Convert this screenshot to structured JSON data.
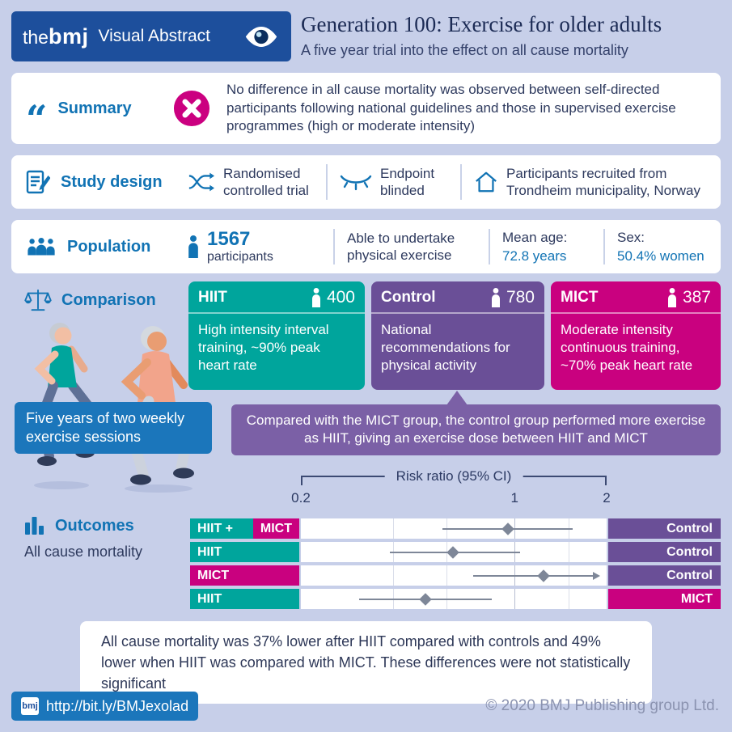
{
  "theme": {
    "background": "#c7cfe9",
    "bmj_navy": "#1d4f9c",
    "accent_blue": "#1173b4",
    "text_dark": "#2e3a5e",
    "teal": "#00a59c",
    "purple": "#6a4f97",
    "purple_light": "#7b60a6",
    "magenta": "#c9017f",
    "marker_gray": "#7e8798"
  },
  "header": {
    "logo_the": "the",
    "logo_bmj": "bmj",
    "product": "Visual Abstract",
    "title": "Generation 100: Exercise for older adults",
    "subtitle": "A five year trial into the effect on all cause mortality"
  },
  "summary": {
    "label": "Summary",
    "text": "No difference in all cause mortality was observed between self-directed participants following national guidelines and those in supervised exercise programmes (high or moderate intensity)"
  },
  "study_design": {
    "label": "Study design",
    "items": [
      {
        "icon": "shuffle-icon",
        "text": "Randomised controlled trial"
      },
      {
        "icon": "blinded-eye-icon",
        "text": "Endpoint blinded"
      },
      {
        "icon": "house-icon",
        "text": "Participants recruited from Trondheim municipality, Norway"
      }
    ]
  },
  "population": {
    "label": "Population",
    "count": "1567",
    "count_label": "participants",
    "criteria": "Able to undertake physical exercise",
    "mean_age_label": "Mean age:",
    "mean_age_value": "72.8 years",
    "sex_label": "Sex:",
    "sex_value": "50.4% women"
  },
  "comparison": {
    "label": "Comparison",
    "groups": [
      {
        "name": "HIIT",
        "n": "400",
        "description": "High intensity interval training, ~90% peak heart rate",
        "color": "#00a59c"
      },
      {
        "name": "Control",
        "n": "780",
        "description": "National recommendations for physical activity",
        "color": "#6a4f97"
      },
      {
        "name": "MICT",
        "n": "387",
        "description": "Moderate intensity continuous training, ~70% peak heart rate",
        "color": "#c9017f"
      }
    ],
    "sessions_note": "Five years of two weekly exercise sessions",
    "control_note": "Compared with the MICT group, the control group performed more exercise as HIIT, giving an exercise dose between HIIT and MICT"
  },
  "outcomes": {
    "label": "Outcomes",
    "measure": "All cause mortality",
    "conclusion": "All cause mortality was 37% lower after HIIT compared with controls and 49% lower when HIIT was compared with MICT. These differences were not statistically significant"
  },
  "chart_data": {
    "type": "forest",
    "title": "Risk ratio (95% CI)",
    "xscale": "log",
    "xlim": [
      0.2,
      2
    ],
    "ticks": [
      0.2,
      1,
      2
    ],
    "gridlines": [
      0.4,
      0.6,
      1,
      1.5
    ],
    "rows": [
      {
        "left": [
          {
            "text": "HIIT +",
            "color": "#00a59c"
          },
          {
            "text": "MICT",
            "color": "#c9017f"
          }
        ],
        "right": {
          "text": "Control",
          "color": "#6a4f97"
        },
        "estimate": 0.95,
        "ci_low": 0.58,
        "ci_high": 1.55,
        "arrow": false
      },
      {
        "left": [
          {
            "text": "HIIT",
            "color": "#00a59c"
          }
        ],
        "right": {
          "text": "Control",
          "color": "#6a4f97"
        },
        "estimate": 0.63,
        "ci_low": 0.39,
        "ci_high": 1.04,
        "arrow": false
      },
      {
        "left": [
          {
            "text": "MICT",
            "color": "#c9017f"
          }
        ],
        "right": {
          "text": "Control",
          "color": "#6a4f97"
        },
        "estimate": 1.24,
        "ci_low": 0.73,
        "ci_high": 2.1,
        "arrow": true
      },
      {
        "left": [
          {
            "text": "HIIT",
            "color": "#00a59c"
          }
        ],
        "right": {
          "text": "MICT",
          "color": "#c9017f"
        },
        "estimate": 0.51,
        "ci_low": 0.31,
        "ci_high": 0.84,
        "arrow": false
      }
    ]
  },
  "footer": {
    "badge": "bmj",
    "url": "http://bit.ly/BMJexolad",
    "copyright": "© 2020 BMJ Publishing group Ltd."
  }
}
